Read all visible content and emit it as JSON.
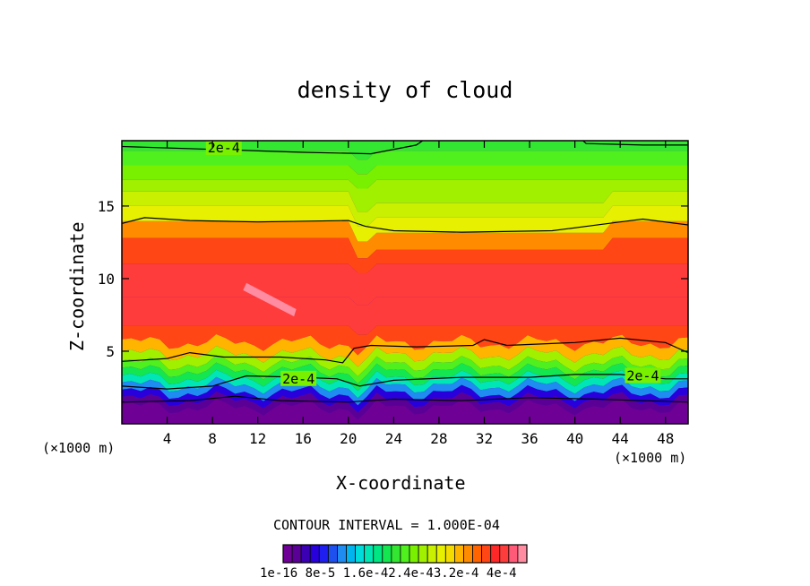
{
  "chart_data": {
    "type": "heatmap",
    "title": "density of cloud",
    "xlabel": "X-coordinate",
    "ylabel": "Z-coordinate",
    "x_unit": "(×1000 m)",
    "xlim": [
      0,
      50
    ],
    "ylim": [
      0,
      19.5
    ],
    "x_ticks": [
      4,
      8,
      12,
      16,
      20,
      24,
      28,
      32,
      36,
      40,
      44,
      48
    ],
    "y_ticks": [
      5,
      10,
      15
    ],
    "contour_interval_text": "CONTOUR INTERVAL = 1.000E-04",
    "contour_labels": [
      "2e-4",
      "2e-4",
      "2e-4"
    ],
    "colorbar_labels": [
      "1e-16",
      "8e-5",
      "1.6e-4",
      "2.4e-4",
      "3.2e-4",
      "4e-4"
    ],
    "colorbar_label_text": "1e-16 8e-5 1.6e-42.4e-43.2e-4 4e-4",
    "colorbar_colors": [
      "#6e0096",
      "#5a0096",
      "#3c00b4",
      "#2800dc",
      "#1e1ef0",
      "#1e50f0",
      "#1e8cf0",
      "#00b4f0",
      "#00dcdc",
      "#00e6b4",
      "#00e682",
      "#14e650",
      "#32e632",
      "#50f01e",
      "#78f000",
      "#a0f000",
      "#c8f000",
      "#e6f000",
      "#f5dc00",
      "#ffb400",
      "#ff8c00",
      "#ff6400",
      "#ff4614",
      "#ff2828",
      "#ff3c3c",
      "#ff5a78",
      "#ff8ca0"
    ],
    "series": [
      {
        "z": [
          0.9,
          1.4,
          1.9,
          2.4,
          2.9,
          3.4,
          3.9,
          4.4,
          5.2,
          6.0,
          7.5,
          10.0,
          12.0,
          13.2,
          14.3,
          15.3,
          16.3,
          17.3,
          18.3,
          19.3
        ],
        "values": [
          2e-06,
          2e-05,
          6e-05,
          0.0001,
          0.00014,
          0.00017,
          0.0002,
          0.00024,
          0.0003,
          0.00035,
          0.00038,
          0.000375,
          0.00034,
          0.00031,
          0.00027,
          0.000255,
          0.00024,
          0.000225,
          0.00021,
          0.000195
        ]
      }
    ]
  }
}
